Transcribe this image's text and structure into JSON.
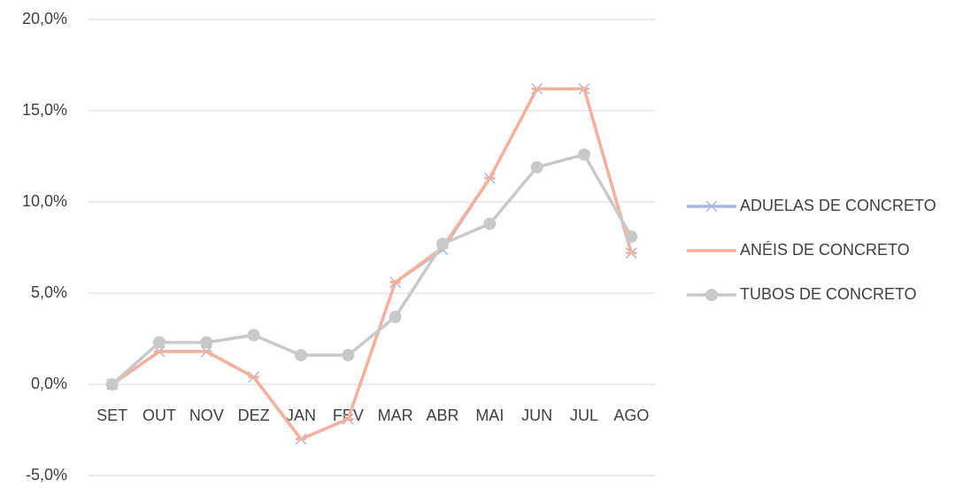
{
  "chart_data": {
    "type": "line",
    "categories": [
      "SET",
      "OUT",
      "NOV",
      "DEZ",
      "JAN",
      "FEV",
      "MAR",
      "ABR",
      "MAI",
      "JUN",
      "JUL",
      "AGO"
    ],
    "series": [
      {
        "name": "ADUELAS DE CONCRETO",
        "color": "#a9b7e2",
        "marker": "x",
        "values": [
          0,
          1.8,
          1.8,
          0.4,
          -3.0,
          -1.9,
          5.6,
          7.4,
          11.3,
          16.2,
          16.2,
          7.2
        ]
      },
      {
        "name": "ANÉIS DE CONCRETO",
        "color": "#f4b19c",
        "marker": "dash",
        "values": [
          0,
          1.8,
          1.8,
          0.4,
          -3.0,
          -1.9,
          5.6,
          7.5,
          11.3,
          16.2,
          16.2,
          7.2
        ]
      },
      {
        "name": "TUBOS DE CONCRETO",
        "color": "#c9c9c9",
        "marker": "circle",
        "values": [
          0,
          2.3,
          2.3,
          2.7,
          1.6,
          1.6,
          3.7,
          7.7,
          8.8,
          11.9,
          12.6,
          8.1
        ]
      }
    ],
    "ylim": [
      -5,
      20
    ],
    "yticks": [
      {
        "value": -5,
        "label": "-5,0%"
      },
      {
        "value": 0,
        "label": "0,0%"
      },
      {
        "value": 5,
        "label": "5,0%"
      },
      {
        "value": 10,
        "label": "10,0%"
      },
      {
        "value": 15,
        "label": "15,0%"
      },
      {
        "value": 20,
        "label": "20,0%"
      }
    ],
    "grid": true,
    "legend": "right"
  }
}
